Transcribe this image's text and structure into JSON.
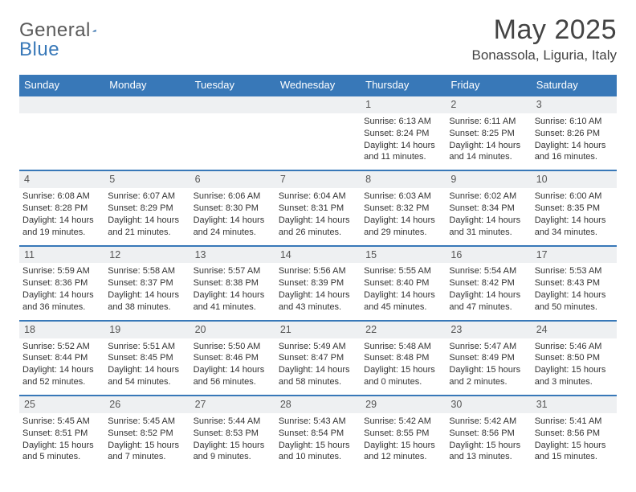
{
  "brand": {
    "name1": "General",
    "name2": "Blue"
  },
  "title": {
    "month": "May 2025",
    "location": "Bonassola, Liguria, Italy"
  },
  "colors": {
    "accent": "#3878b8",
    "header_text": "#ffffff",
    "daynum_bg": "#eef0f2",
    "text": "#333333"
  },
  "days_of_week": [
    "Sunday",
    "Monday",
    "Tuesday",
    "Wednesday",
    "Thursday",
    "Friday",
    "Saturday"
  ],
  "weeks": [
    [
      null,
      null,
      null,
      null,
      {
        "n": "1",
        "sr": "6:13 AM",
        "ss": "8:24 PM",
        "dl": "14 hours and 11 minutes."
      },
      {
        "n": "2",
        "sr": "6:11 AM",
        "ss": "8:25 PM",
        "dl": "14 hours and 14 minutes."
      },
      {
        "n": "3",
        "sr": "6:10 AM",
        "ss": "8:26 PM",
        "dl": "14 hours and 16 minutes."
      }
    ],
    [
      {
        "n": "4",
        "sr": "6:08 AM",
        "ss": "8:28 PM",
        "dl": "14 hours and 19 minutes."
      },
      {
        "n": "5",
        "sr": "6:07 AM",
        "ss": "8:29 PM",
        "dl": "14 hours and 21 minutes."
      },
      {
        "n": "6",
        "sr": "6:06 AM",
        "ss": "8:30 PM",
        "dl": "14 hours and 24 minutes."
      },
      {
        "n": "7",
        "sr": "6:04 AM",
        "ss": "8:31 PM",
        "dl": "14 hours and 26 minutes."
      },
      {
        "n": "8",
        "sr": "6:03 AM",
        "ss": "8:32 PM",
        "dl": "14 hours and 29 minutes."
      },
      {
        "n": "9",
        "sr": "6:02 AM",
        "ss": "8:34 PM",
        "dl": "14 hours and 31 minutes."
      },
      {
        "n": "10",
        "sr": "6:00 AM",
        "ss": "8:35 PM",
        "dl": "14 hours and 34 minutes."
      }
    ],
    [
      {
        "n": "11",
        "sr": "5:59 AM",
        "ss": "8:36 PM",
        "dl": "14 hours and 36 minutes."
      },
      {
        "n": "12",
        "sr": "5:58 AM",
        "ss": "8:37 PM",
        "dl": "14 hours and 38 minutes."
      },
      {
        "n": "13",
        "sr": "5:57 AM",
        "ss": "8:38 PM",
        "dl": "14 hours and 41 minutes."
      },
      {
        "n": "14",
        "sr": "5:56 AM",
        "ss": "8:39 PM",
        "dl": "14 hours and 43 minutes."
      },
      {
        "n": "15",
        "sr": "5:55 AM",
        "ss": "8:40 PM",
        "dl": "14 hours and 45 minutes."
      },
      {
        "n": "16",
        "sr": "5:54 AM",
        "ss": "8:42 PM",
        "dl": "14 hours and 47 minutes."
      },
      {
        "n": "17",
        "sr": "5:53 AM",
        "ss": "8:43 PM",
        "dl": "14 hours and 50 minutes."
      }
    ],
    [
      {
        "n": "18",
        "sr": "5:52 AM",
        "ss": "8:44 PM",
        "dl": "14 hours and 52 minutes."
      },
      {
        "n": "19",
        "sr": "5:51 AM",
        "ss": "8:45 PM",
        "dl": "14 hours and 54 minutes."
      },
      {
        "n": "20",
        "sr": "5:50 AM",
        "ss": "8:46 PM",
        "dl": "14 hours and 56 minutes."
      },
      {
        "n": "21",
        "sr": "5:49 AM",
        "ss": "8:47 PM",
        "dl": "14 hours and 58 minutes."
      },
      {
        "n": "22",
        "sr": "5:48 AM",
        "ss": "8:48 PM",
        "dl": "15 hours and 0 minutes."
      },
      {
        "n": "23",
        "sr": "5:47 AM",
        "ss": "8:49 PM",
        "dl": "15 hours and 2 minutes."
      },
      {
        "n": "24",
        "sr": "5:46 AM",
        "ss": "8:50 PM",
        "dl": "15 hours and 3 minutes."
      }
    ],
    [
      {
        "n": "25",
        "sr": "5:45 AM",
        "ss": "8:51 PM",
        "dl": "15 hours and 5 minutes."
      },
      {
        "n": "26",
        "sr": "5:45 AM",
        "ss": "8:52 PM",
        "dl": "15 hours and 7 minutes."
      },
      {
        "n": "27",
        "sr": "5:44 AM",
        "ss": "8:53 PM",
        "dl": "15 hours and 9 minutes."
      },
      {
        "n": "28",
        "sr": "5:43 AM",
        "ss": "8:54 PM",
        "dl": "15 hours and 10 minutes."
      },
      {
        "n": "29",
        "sr": "5:42 AM",
        "ss": "8:55 PM",
        "dl": "15 hours and 12 minutes."
      },
      {
        "n": "30",
        "sr": "5:42 AM",
        "ss": "8:56 PM",
        "dl": "15 hours and 13 minutes."
      },
      {
        "n": "31",
        "sr": "5:41 AM",
        "ss": "8:56 PM",
        "dl": "15 hours and 15 minutes."
      }
    ]
  ],
  "labels": {
    "sunrise": "Sunrise: ",
    "sunset": "Sunset: ",
    "daylight": "Daylight: "
  }
}
